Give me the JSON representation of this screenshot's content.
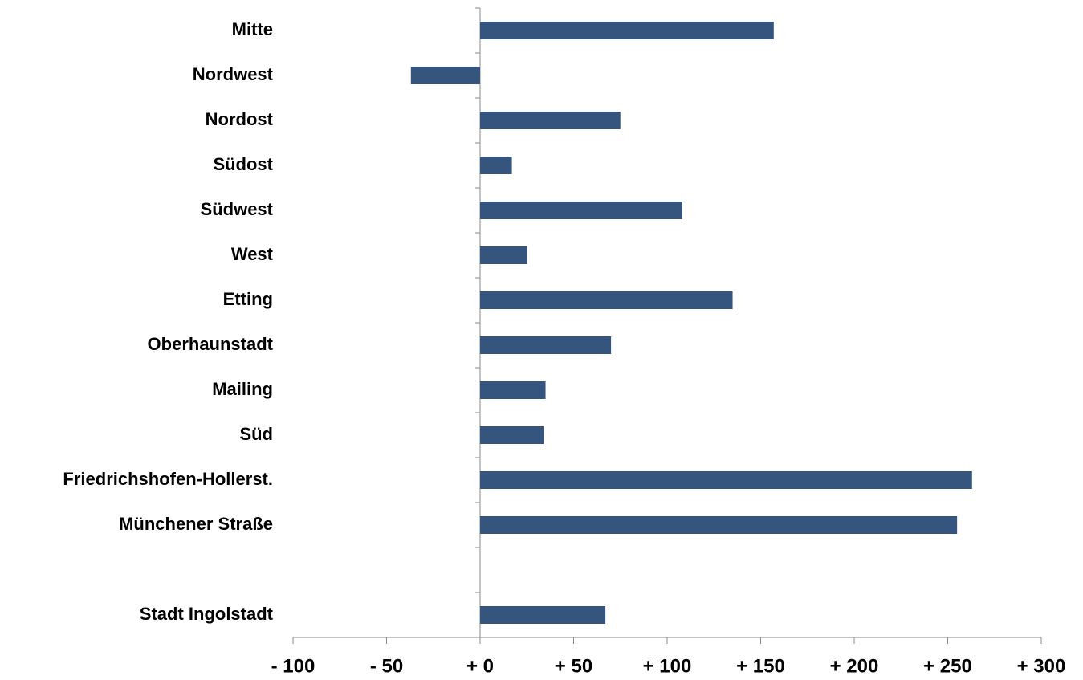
{
  "chart_data": {
    "type": "bar",
    "orientation": "horizontal",
    "categories": [
      "Mitte",
      "Nordwest",
      "Nordost",
      "Südost",
      "Südwest",
      "West",
      "Etting",
      "Oberhaunstadt",
      "Mailing",
      "Süd",
      "Friedrichshofen-Hollerst.",
      "Münchener Straße",
      null,
      "Stadt Ingolstadt"
    ],
    "values": [
      157,
      -37,
      75,
      17,
      108,
      25,
      135,
      70,
      35,
      34,
      263,
      255,
      null,
      67
    ],
    "color": "#35557f",
    "xlim": [
      -100,
      300
    ],
    "xticks": [
      {
        "value": -100,
        "label": "- 100"
      },
      {
        "value": -50,
        "label": "- 50"
      },
      {
        "value": 0,
        "label": "+ 0"
      },
      {
        "value": 50,
        "label": "+ 50"
      },
      {
        "value": 100,
        "label": "+ 100"
      },
      {
        "value": 150,
        "label": "+ 150"
      },
      {
        "value": 200,
        "label": "+ 200"
      },
      {
        "value": 250,
        "label": "+ 250"
      },
      {
        "value": 300,
        "label": "+ 300"
      }
    ],
    "grid": false
  }
}
